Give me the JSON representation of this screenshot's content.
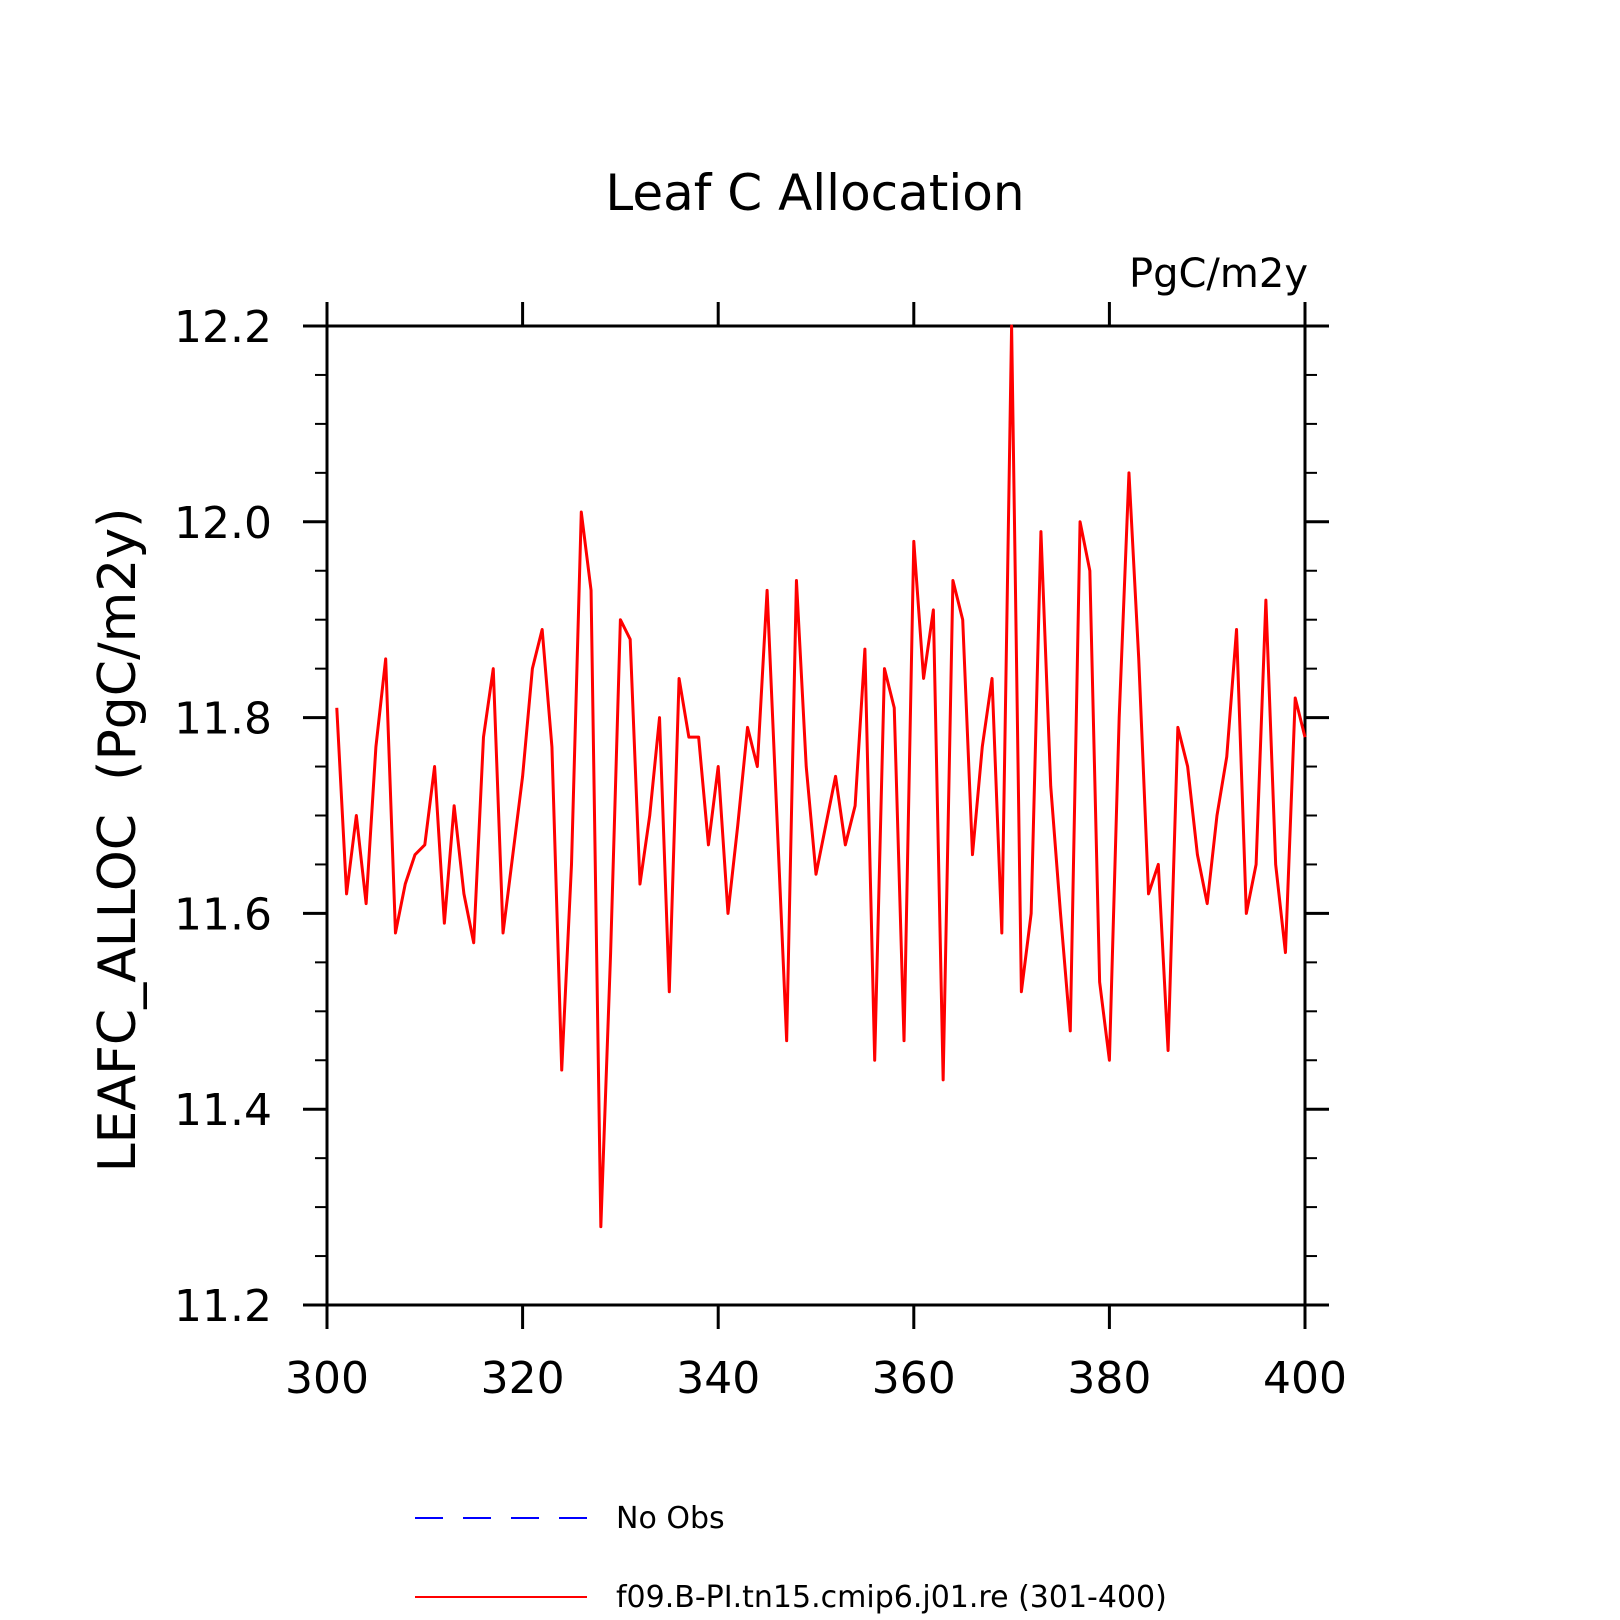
{
  "chart_data": {
    "type": "line",
    "title": "Leaf C Allocation",
    "units_label": "PgC/m2y",
    "ylabel": "LEAFC_ALLOC  (PgC/m2y)",
    "xlabel": "",
    "xlim": [
      300,
      400
    ],
    "ylim": [
      11.2,
      12.2
    ],
    "x_ticks": [
      "300",
      "320",
      "340",
      "360",
      "380",
      "400"
    ],
    "y_ticks": [
      "11.2",
      "11.4",
      "11.6",
      "11.8",
      "12.0",
      "12.2"
    ],
    "legend_position": "bottom",
    "legend": [
      {
        "label": "No Obs",
        "color": "#0000ff",
        "style": "dashed"
      },
      {
        "label": "f09.B-PI.tn15.cmip6.j01.re (301-400)",
        "color": "#ff0000",
        "style": "solid"
      }
    ],
    "series": [
      {
        "name": "f09.B-PI.tn15.cmip6.j01.re (301-400)",
        "color": "#ff0000",
        "x_start": 301,
        "x_step": 1,
        "values": [
          11.81,
          11.62,
          11.7,
          11.61,
          11.77,
          11.86,
          11.58,
          11.63,
          11.66,
          11.67,
          11.75,
          11.59,
          11.71,
          11.62,
          11.57,
          11.78,
          11.85,
          11.58,
          11.66,
          11.74,
          11.85,
          11.89,
          11.77,
          11.44,
          11.65,
          12.01,
          11.93,
          11.28,
          11.56,
          11.9,
          11.88,
          11.63,
          11.7,
          11.8,
          11.52,
          11.84,
          11.78,
          11.78,
          11.67,
          11.75,
          11.6,
          11.69,
          11.79,
          11.75,
          11.93,
          11.7,
          11.47,
          11.94,
          11.75,
          11.64,
          11.69,
          11.74,
          11.67,
          11.71,
          11.87,
          11.45,
          11.85,
          11.81,
          11.47,
          11.98,
          11.84,
          11.91,
          11.43,
          11.94,
          11.9,
          11.66,
          11.77,
          11.84,
          11.58,
          12.2,
          11.52,
          11.6,
          11.99,
          11.73,
          11.6,
          11.48,
          12.0,
          11.95,
          11.53,
          11.45,
          11.8,
          12.05,
          11.86,
          11.62,
          11.65,
          11.46,
          11.79,
          11.75,
          11.66,
          11.61,
          11.7,
          11.76,
          11.89,
          11.6,
          11.65,
          11.92,
          11.65,
          11.56,
          11.82,
          11.78
        ]
      }
    ]
  }
}
